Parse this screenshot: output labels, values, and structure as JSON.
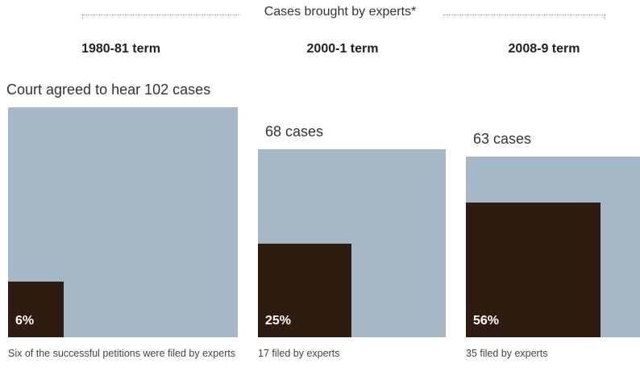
{
  "header": {
    "title": "Cases brought by experts*"
  },
  "chart_data": {
    "type": "area",
    "title": "Cases brought by experts*",
    "colors": {
      "total": "#a6b8c7",
      "expert": "#2d1c0f"
    },
    "series": [
      {
        "term": "1980-81 term",
        "total_cases": 102,
        "total_label": "Court agreed to hear 102 cases",
        "expert_cases": 6,
        "expert_share_pct": 6,
        "pct_label": "6%",
        "note": "Six of the successful petitions were filed by experts"
      },
      {
        "term": "2000-1 term",
        "total_cases": 68,
        "total_label": "68 cases",
        "expert_cases": 17,
        "expert_share_pct": 25,
        "pct_label": "25%",
        "note": "17 filed by experts"
      },
      {
        "term": "2008-9 term",
        "total_cases": 63,
        "total_label": "63 cases",
        "expert_cases": 35,
        "expert_share_pct": 56,
        "pct_label": "56%",
        "note": "35 filed by experts"
      }
    ]
  }
}
